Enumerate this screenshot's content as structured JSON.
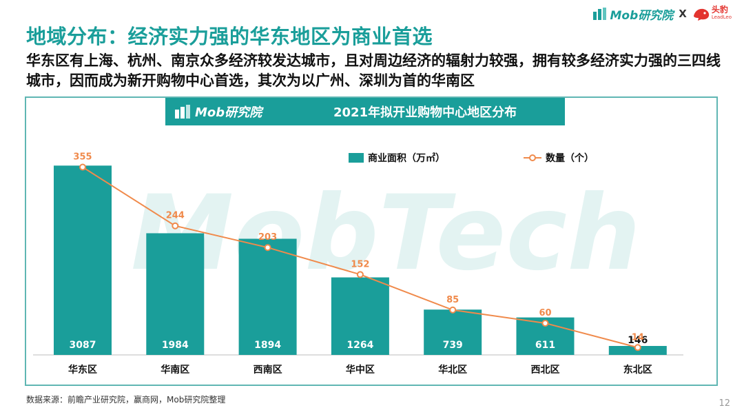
{
  "header": {
    "title": "地域分布：经济实力强的华东地区为商业首选",
    "subtitle": "华东区有上海、杭州、南京众多经济较发达城市，且对周边经济的辐射力较强，拥有较多经济实力强的三四线城市，因而成为新开购物中心首选，其次为以广州、深圳为首的华南区"
  },
  "brand": {
    "mob_label": "Mob研究院",
    "separator": "X",
    "leadleo_main": "头豹",
    "leadleo_sub": "LeadLeo"
  },
  "banner": {
    "logo_label": "Mob研究院",
    "title": "2021年拟开业购物中心地区分布"
  },
  "watermark": "MobTech",
  "colors": {
    "teal": "#1a9e9a",
    "orange": "#f08a4b"
  },
  "chart_data": {
    "type": "bar",
    "title": "2021年拟开业购物中心地区分布",
    "categories": [
      "华东区",
      "华南区",
      "西南区",
      "华中区",
      "华北区",
      "西北区",
      "东北区"
    ],
    "series": [
      {
        "name": "商业面积（万㎡）",
        "type": "bar",
        "values": [
          3087,
          1984,
          1894,
          1264,
          739,
          611,
          146
        ]
      },
      {
        "name": "数量（个）",
        "type": "line",
        "values": [
          355,
          244,
          203,
          152,
          85,
          60,
          14
        ]
      }
    ],
    "legend": [
      "商业面积（万㎡）",
      "数量（个）"
    ],
    "legend_position": "top-right",
    "ylim_area": [
      0,
      3450
    ],
    "ylim_count": [
      0,
      400
    ]
  },
  "footer": {
    "source": "数据来源：前瞻产业研究院，赢商网，Mob研究院整理",
    "page": "12"
  }
}
